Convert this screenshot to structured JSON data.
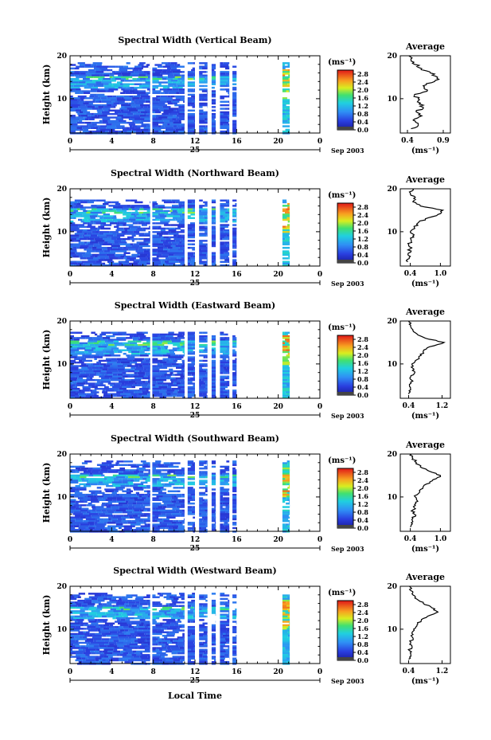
{
  "chart_data": [
    {
      "type": "heatmap",
      "title": "Spectral Width (Vertical Beam)",
      "ylabel": "Height (km)",
      "ylim": [
        2,
        20
      ],
      "yticks": [
        "10",
        "20"
      ],
      "xlim": [
        0,
        24
      ],
      "xticks": [
        "0",
        "4",
        "8",
        "12",
        "16",
        "20",
        "0"
      ],
      "date_day": "25",
      "date_label": "Sep 2003",
      "colorbar": {
        "unit": "(ms⁻¹)",
        "ticks": [
          "2.8",
          "2.4",
          "2.0",
          "1.6",
          "1.2",
          "0.8",
          "0.4",
          "0.0"
        ],
        "range": [
          0.0,
          3.0
        ]
      },
      "data_blocks_hours": [
        [
          0,
          7.7
        ],
        [
          7.9,
          11.0
        ],
        [
          11.3,
          12.0
        ],
        [
          12.4,
          13.2
        ],
        [
          13.6,
          14.0
        ],
        [
          14.4,
          15.3
        ],
        [
          15.6,
          16.0
        ],
        [
          20.4,
          21.1
        ]
      ],
      "data_top_km": 18.5,
      "profile": {
        "title": "Average",
        "xticks": [
          "0.4",
          "0.9"
        ],
        "xlim": [
          0.3,
          1.0
        ],
        "unit": "(ms⁻¹)",
        "yticks": [
          "10",
          "20"
        ],
        "heights_km": [
          3,
          4,
          5,
          6,
          7,
          8,
          9,
          10,
          11,
          12,
          13,
          14,
          15,
          16,
          17,
          18,
          19,
          20
        ],
        "values": [
          0.45,
          0.55,
          0.48,
          0.6,
          0.52,
          0.62,
          0.58,
          0.55,
          0.5,
          0.68,
          0.62,
          0.78,
          0.82,
          0.72,
          0.6,
          0.5,
          0.45,
          0.42
        ]
      }
    },
    {
      "type": "heatmap",
      "title": "Spectral Width (Northward Beam)",
      "ylabel": "Height (km)",
      "ylim": [
        2,
        20
      ],
      "yticks": [
        "10",
        "20"
      ],
      "xlim": [
        0,
        24
      ],
      "xticks": [
        "0",
        "4",
        "8",
        "12",
        "16",
        "20",
        "0"
      ],
      "date_day": "25",
      "date_label": "Sep 2003",
      "colorbar": {
        "unit": "(ms⁻¹)",
        "ticks": [
          "2.8",
          "2.4",
          "2.0",
          "1.6",
          "1.2",
          "0.8",
          "0.4",
          "0.0"
        ],
        "range": [
          0.0,
          3.0
        ]
      },
      "data_blocks_hours": [
        [
          0,
          7.7
        ],
        [
          7.9,
          11.0
        ],
        [
          11.3,
          12.0
        ],
        [
          12.4,
          13.2
        ],
        [
          13.6,
          14.0
        ],
        [
          14.4,
          15.3
        ],
        [
          15.6,
          16.0
        ],
        [
          20.4,
          21.1
        ]
      ],
      "data_top_km": 17.5,
      "profile": {
        "title": "Average",
        "xticks": [
          "0.4",
          "1.0"
        ],
        "xlim": [
          0.2,
          1.2
        ],
        "unit": "(ms⁻¹)",
        "yticks": [
          "10",
          "20"
        ],
        "heights_km": [
          3,
          4,
          5,
          6,
          7,
          8,
          9,
          10,
          11,
          12,
          13,
          14,
          15,
          16,
          17,
          18,
          19,
          20
        ],
        "values": [
          0.35,
          0.38,
          0.36,
          0.4,
          0.37,
          0.42,
          0.45,
          0.4,
          0.48,
          0.55,
          0.7,
          0.95,
          1.05,
          0.6,
          0.45,
          0.5,
          0.4,
          0.45
        ]
      }
    },
    {
      "type": "heatmap",
      "title": "Spectral Width (Eastward Beam)",
      "ylabel": "Height (km)",
      "ylim": [
        2,
        20
      ],
      "yticks": [
        "10",
        "20"
      ],
      "xlim": [
        0,
        24
      ],
      "xticks": [
        "0",
        "4",
        "8",
        "12",
        "16",
        "20",
        "0"
      ],
      "date_day": "25",
      "date_label": "Sep 2003",
      "colorbar": {
        "unit": "(ms⁻¹)",
        "ticks": [
          "2.8",
          "2.4",
          "2.0",
          "1.6",
          "1.2",
          "0.8",
          "0.4",
          "0.0"
        ],
        "range": [
          0.0,
          3.0
        ]
      },
      "data_blocks_hours": [
        [
          0,
          7.7
        ],
        [
          7.9,
          11.0
        ],
        [
          11.3,
          12.0
        ],
        [
          12.4,
          13.2
        ],
        [
          13.6,
          14.0
        ],
        [
          14.4,
          15.3
        ],
        [
          15.6,
          16.0
        ],
        [
          20.4,
          21.1
        ]
      ],
      "data_top_km": 17.5,
      "profile": {
        "title": "Average",
        "xticks": [
          "0.4",
          "1.2"
        ],
        "xlim": [
          0.2,
          1.4
        ],
        "unit": "(ms⁻¹)",
        "yticks": [
          "10",
          "20"
        ],
        "heights_km": [
          3,
          4,
          5,
          6,
          7,
          8,
          9,
          10,
          11,
          12,
          13,
          14,
          15,
          16,
          17,
          18,
          19,
          20
        ],
        "values": [
          0.4,
          0.45,
          0.42,
          0.5,
          0.45,
          0.55,
          0.5,
          0.48,
          0.6,
          0.7,
          0.75,
          0.9,
          1.25,
          0.8,
          0.6,
          0.5,
          0.45,
          0.4
        ]
      }
    },
    {
      "type": "heatmap",
      "title": "Spectral Width (Southward Beam)",
      "ylabel": "Height (km)",
      "ylim": [
        2,
        20
      ],
      "yticks": [
        "10",
        "20"
      ],
      "xlim": [
        0,
        24
      ],
      "xticks": [
        "0",
        "4",
        "8",
        "12",
        "16",
        "20",
        "0"
      ],
      "date_day": "25",
      "date_label": "Sep 2003",
      "colorbar": {
        "unit": "(ms⁻¹)",
        "ticks": [
          "2.8",
          "2.4",
          "2.0",
          "1.6",
          "1.2",
          "0.8",
          "0.4",
          "0.0"
        ],
        "range": [
          0.0,
          3.0
        ]
      },
      "data_blocks_hours": [
        [
          0,
          7.7
        ],
        [
          7.9,
          11.0
        ],
        [
          11.3,
          12.0
        ],
        [
          12.4,
          13.2
        ],
        [
          13.6,
          14.0
        ],
        [
          14.4,
          15.3
        ],
        [
          15.6,
          16.0
        ],
        [
          20.4,
          21.1
        ]
      ],
      "data_top_km": 18.5,
      "profile": {
        "title": "Average",
        "xticks": [
          "0.4",
          "1.0"
        ],
        "xlim": [
          0.2,
          1.2
        ],
        "unit": "(ms⁻¹)",
        "yticks": [
          "10",
          "20"
        ],
        "heights_km": [
          3,
          4,
          5,
          6,
          7,
          8,
          9,
          10,
          11,
          12,
          13,
          14,
          15,
          16,
          17,
          18,
          19,
          20
        ],
        "values": [
          0.4,
          0.42,
          0.45,
          0.48,
          0.45,
          0.5,
          0.55,
          0.5,
          0.58,
          0.65,
          0.72,
          0.85,
          1.0,
          0.78,
          0.6,
          0.52,
          0.45,
          0.42
        ]
      }
    },
    {
      "type": "heatmap",
      "title": "Spectral Width (Westward Beam)",
      "ylabel": "Height (km)",
      "ylim": [
        2,
        20
      ],
      "yticks": [
        "10",
        "20"
      ],
      "xlim": [
        0,
        24
      ],
      "xticks": [
        "0",
        "4",
        "8",
        "12",
        "16",
        "20",
        "0"
      ],
      "date_day": "25",
      "date_label": "Sep 2003",
      "xlabel": "Local Time",
      "colorbar": {
        "unit": "(ms⁻¹)",
        "ticks": [
          "2.8",
          "2.4",
          "2.0",
          "1.6",
          "1.2",
          "0.8",
          "0.4",
          "0.0"
        ],
        "range": [
          0.0,
          3.0
        ]
      },
      "data_blocks_hours": [
        [
          0,
          7.7
        ],
        [
          7.9,
          11.0
        ],
        [
          11.3,
          12.0
        ],
        [
          12.4,
          13.2
        ],
        [
          13.6,
          14.0
        ],
        [
          14.4,
          15.3
        ],
        [
          15.6,
          16.0
        ],
        [
          20.4,
          21.1
        ]
      ],
      "data_top_km": 18.5,
      "profile": {
        "title": "Average",
        "xticks": [
          "0.4",
          "1.2"
        ],
        "xlim": [
          0.2,
          1.4
        ],
        "unit": "(ms⁻¹)",
        "yticks": [
          "10",
          "20"
        ],
        "heights_km": [
          3,
          4,
          5,
          6,
          7,
          8,
          9,
          10,
          11,
          12,
          13,
          14,
          15,
          16,
          17,
          18,
          19,
          20
        ],
        "values": [
          0.4,
          0.45,
          0.42,
          0.48,
          0.45,
          0.5,
          0.48,
          0.52,
          0.6,
          0.7,
          0.85,
          1.1,
          0.95,
          0.75,
          0.6,
          0.5,
          0.45,
          0.42
        ]
      }
    }
  ]
}
